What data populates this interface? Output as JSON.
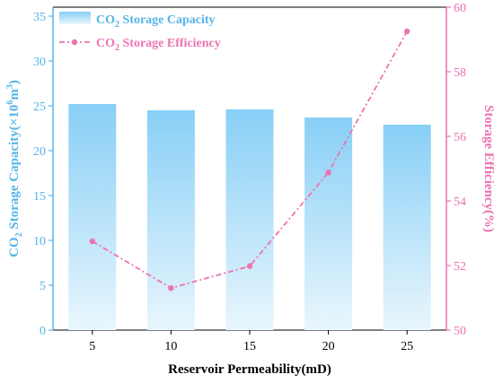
{
  "chart_data": {
    "type": "bar+line",
    "categories": [
      "5",
      "10",
      "15",
      "20",
      "25"
    ],
    "series": [
      {
        "name": "CO2 Storage Capacity",
        "name_main": "CO",
        "name_sub": "2",
        "name_rest": " Storage Capacity",
        "kind": "bar",
        "axis": "left",
        "values": [
          25.2,
          24.5,
          24.6,
          23.7,
          22.9
        ],
        "color": "#87CEF5"
      },
      {
        "name": "CO2 Storage Efficiency",
        "name_main": "CO",
        "name_sub": "2",
        "name_rest": " Storage Efficiency",
        "kind": "line",
        "axis": "right",
        "values": [
          52.75,
          51.3,
          51.98,
          54.88,
          59.25
        ],
        "color": "#EE72B2"
      }
    ],
    "xlabel": "Reservoir Permeability(mD)",
    "ylabel_left_parts": [
      "CO",
      "2",
      " Storage Capacity(×10",
      "6",
      "m",
      "3",
      ")"
    ],
    "ylabel_right": "Storage Efficiency(%)",
    "ylim_left": [
      0,
      36
    ],
    "yticks_left": [
      "0",
      "5",
      "10",
      "15",
      "20",
      "25",
      "30",
      "35"
    ],
    "ylim_right": [
      50,
      60
    ],
    "yticks_right": [
      "50",
      "52",
      "54",
      "56",
      "58",
      "60"
    ],
    "left_axis_color": "#55B5E8",
    "right_axis_color": "#EE72B2",
    "grid": false,
    "legend_position": "top-left"
  }
}
